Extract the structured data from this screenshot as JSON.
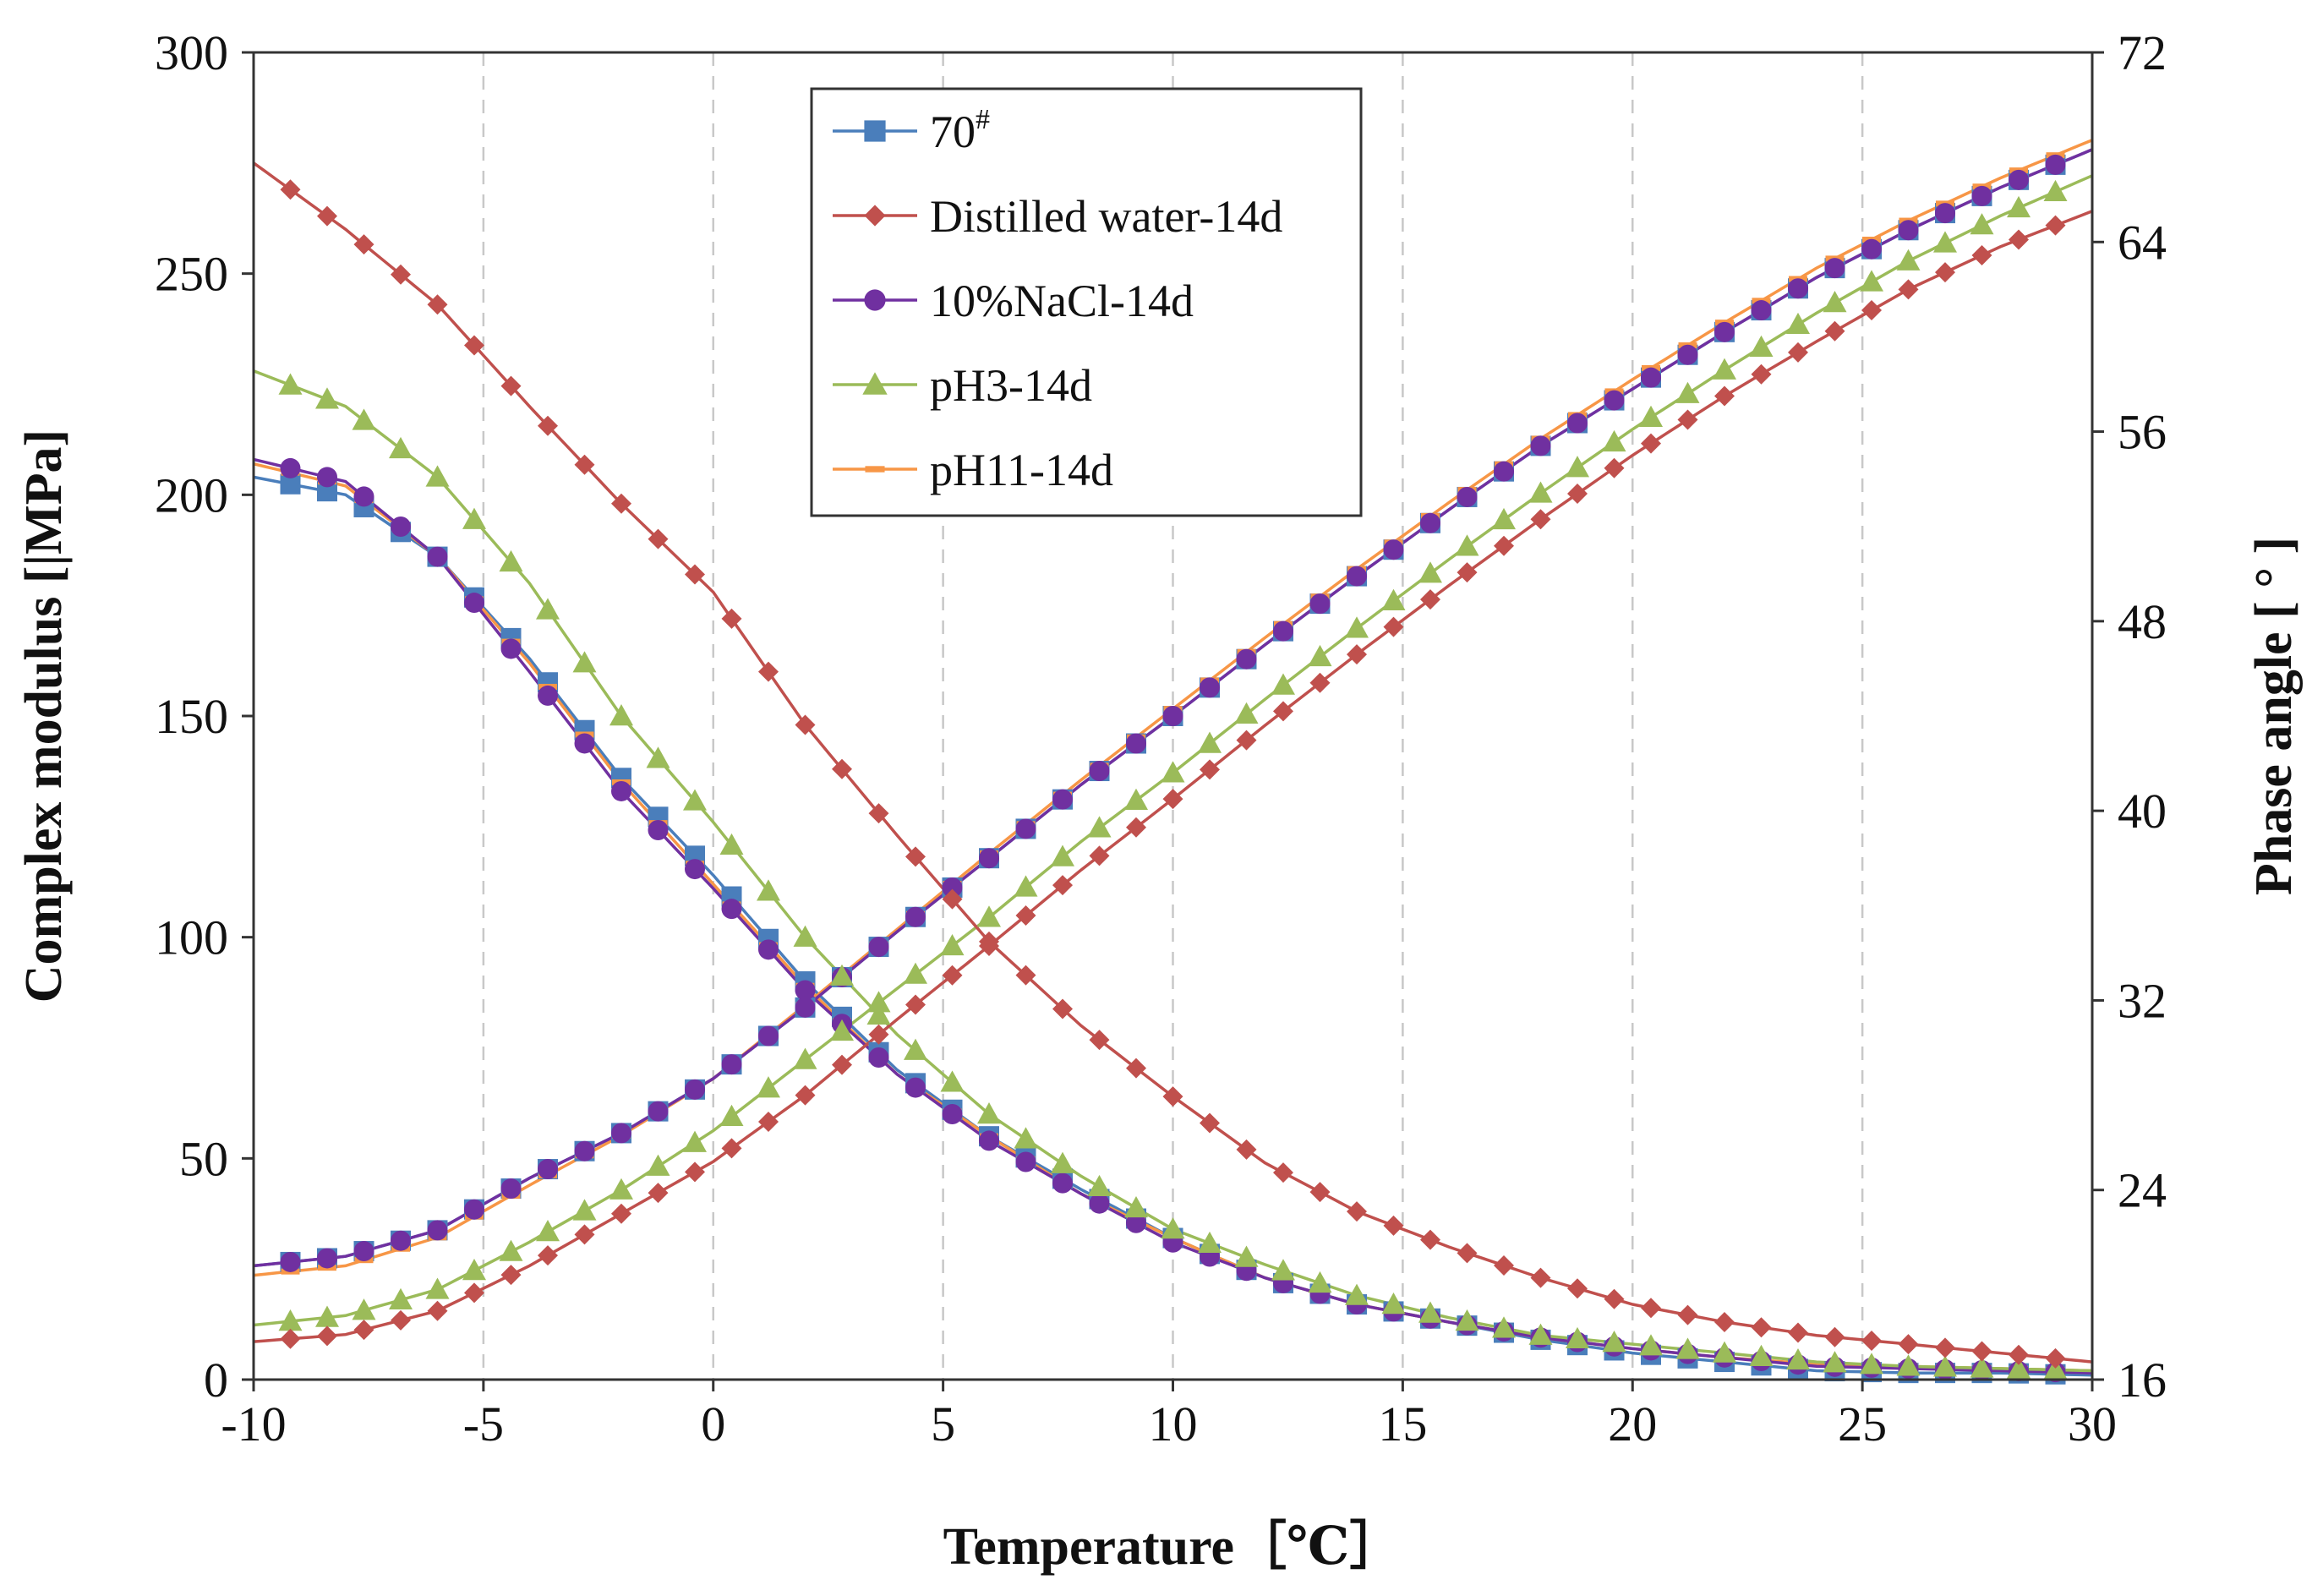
{
  "chart_data": {
    "type": "line",
    "title": "",
    "xlabel": "Temperature［℃］",
    "ylabel_left": "Complex modulus [|MPa]",
    "ylabel_right": "Phase angle [ ° ]",
    "xlim": [
      -10,
      30
    ],
    "ylim_left": [
      0,
      300
    ],
    "ylim_right": [
      16,
      72
    ],
    "x_ticks": [
      "-10",
      "-5",
      "0",
      "5",
      "10",
      "15",
      "20",
      "25",
      "30"
    ],
    "y_left_ticks": [
      "0",
      "50",
      "100",
      "150",
      "200",
      "250",
      "300"
    ],
    "y_right_ticks": [
      "16",
      "24",
      "32",
      "40",
      "48",
      "56",
      "64",
      "72"
    ],
    "grid": "vertical dashed",
    "legend_position": "top-center",
    "x_sample": {
      "start": -9.2,
      "step": 0.8,
      "count": 49
    },
    "series": [
      {
        "name": "70",
        "name_sup": "#",
        "color": "#4a7ebb",
        "marker": "square",
        "modulus": [
          [
            -10,
            204
          ],
          [
            -8,
            200
          ],
          [
            -6,
            186
          ],
          [
            -4,
            163
          ],
          [
            -2,
            136
          ],
          [
            0,
            114
          ],
          [
            2,
            90
          ],
          [
            4,
            70
          ],
          [
            6,
            55
          ],
          [
            8,
            43
          ],
          [
            10,
            32
          ],
          [
            12,
            23
          ],
          [
            14,
            17
          ],
          [
            16,
            13
          ],
          [
            18,
            9
          ],
          [
            20,
            6
          ],
          [
            22,
            4
          ],
          [
            24,
            2
          ],
          [
            26,
            1.5
          ],
          [
            28,
            1.5
          ],
          [
            30,
            1
          ]
        ],
        "phase": [
          [
            -10,
            20.8
          ],
          [
            -8,
            21.2
          ],
          [
            -6,
            22.3
          ],
          [
            -4,
            24.5
          ],
          [
            -2,
            26.4
          ],
          [
            0,
            28.7
          ],
          [
            2,
            31.7
          ],
          [
            4,
            34.9
          ],
          [
            6,
            38.0
          ],
          [
            8,
            41.1
          ],
          [
            10,
            44.0
          ],
          [
            12,
            47.0
          ],
          [
            14,
            49.9
          ],
          [
            16,
            52.7
          ],
          [
            18,
            55.4
          ],
          [
            20,
            57.8
          ],
          [
            22,
            60.2
          ],
          [
            24,
            62.5
          ],
          [
            26,
            64.5
          ],
          [
            28,
            66.3
          ],
          [
            30,
            67.9
          ]
        ]
      },
      {
        "name": "Distilled water-14d",
        "color": "#c0504d",
        "marker": "diamond",
        "modulus": [
          [
            -10,
            275
          ],
          [
            -8,
            260
          ],
          [
            -6,
            243
          ],
          [
            -4,
            220
          ],
          [
            -2,
            198
          ],
          [
            0,
            178
          ],
          [
            2,
            148
          ],
          [
            4,
            123
          ],
          [
            6,
            99
          ],
          [
            8,
            80
          ],
          [
            10,
            64
          ],
          [
            12,
            49
          ],
          [
            14,
            38
          ],
          [
            16,
            30
          ],
          [
            18,
            23
          ],
          [
            20,
            17
          ],
          [
            22,
            13
          ],
          [
            24,
            10
          ],
          [
            26,
            8
          ],
          [
            28,
            6
          ],
          [
            30,
            4
          ]
        ],
        "phase": [
          [
            -10,
            17.6
          ],
          [
            -8,
            17.9
          ],
          [
            -6,
            18.9
          ],
          [
            -4,
            20.8
          ],
          [
            -2,
            23.0
          ],
          [
            0,
            25.2
          ],
          [
            2,
            28.0
          ],
          [
            4,
            31.2
          ],
          [
            6,
            34.3
          ],
          [
            8,
            37.5
          ],
          [
            10,
            40.5
          ],
          [
            12,
            43.6
          ],
          [
            14,
            46.6
          ],
          [
            16,
            49.5
          ],
          [
            18,
            52.3
          ],
          [
            20,
            55.0
          ],
          [
            22,
            57.5
          ],
          [
            24,
            59.8
          ],
          [
            26,
            62.0
          ],
          [
            28,
            63.8
          ],
          [
            30,
            65.3
          ]
        ]
      },
      {
        "name": "10%NaCl-14d",
        "color": "#7030a0",
        "marker": "circle",
        "modulus": [
          [
            -10,
            208
          ],
          [
            -8,
            203
          ],
          [
            -6,
            186
          ],
          [
            -4,
            160
          ],
          [
            -2,
            133
          ],
          [
            0,
            111
          ],
          [
            2,
            88
          ],
          [
            4,
            69
          ],
          [
            6,
            54
          ],
          [
            8,
            42
          ],
          [
            10,
            31
          ],
          [
            12,
            23
          ],
          [
            14,
            17
          ],
          [
            16,
            13
          ],
          [
            18,
            9.5
          ],
          [
            20,
            7
          ],
          [
            22,
            5
          ],
          [
            24,
            3
          ],
          [
            26,
            2.5
          ],
          [
            28,
            2
          ],
          [
            30,
            1.5
          ]
        ],
        "phase": [
          [
            -10,
            20.8
          ],
          [
            -8,
            21.2
          ],
          [
            -6,
            22.3
          ],
          [
            -4,
            24.5
          ],
          [
            -2,
            26.4
          ],
          [
            0,
            28.7
          ],
          [
            2,
            31.7
          ],
          [
            4,
            34.9
          ],
          [
            6,
            38.0
          ],
          [
            8,
            41.1
          ],
          [
            10,
            44.0
          ],
          [
            12,
            47.0
          ],
          [
            14,
            49.9
          ],
          [
            16,
            52.7
          ],
          [
            18,
            55.4
          ],
          [
            20,
            57.8
          ],
          [
            22,
            60.2
          ],
          [
            24,
            62.5
          ],
          [
            26,
            64.5
          ],
          [
            28,
            66.3
          ],
          [
            30,
            67.9
          ]
        ]
      },
      {
        "name": "pH3-14d",
        "color": "#9bbb59",
        "marker": "triangle",
        "modulus": [
          [
            -10,
            228
          ],
          [
            -8,
            220
          ],
          [
            -6,
            204
          ],
          [
            -4,
            180
          ],
          [
            -2,
            150
          ],
          [
            0,
            126
          ],
          [
            2,
            100
          ],
          [
            4,
            78
          ],
          [
            6,
            60
          ],
          [
            8,
            46
          ],
          [
            10,
            34
          ],
          [
            12,
            26
          ],
          [
            14,
            19
          ],
          [
            16,
            14
          ],
          [
            18,
            10
          ],
          [
            20,
            8
          ],
          [
            22,
            6
          ],
          [
            24,
            4
          ],
          [
            26,
            3
          ],
          [
            28,
            2.5
          ],
          [
            30,
            2
          ]
        ],
        "phase": [
          [
            -10,
            18.3
          ],
          [
            -8,
            18.7
          ],
          [
            -6,
            19.8
          ],
          [
            -4,
            21.8
          ],
          [
            -2,
            24.0
          ],
          [
            0,
            26.5
          ],
          [
            2,
            29.5
          ],
          [
            4,
            32.5
          ],
          [
            6,
            35.5
          ],
          [
            8,
            38.7
          ],
          [
            10,
            41.6
          ],
          [
            12,
            44.7
          ],
          [
            14,
            47.7
          ],
          [
            16,
            50.6
          ],
          [
            18,
            53.4
          ],
          [
            20,
            56.1
          ],
          [
            22,
            58.6
          ],
          [
            24,
            61.0
          ],
          [
            26,
            63.2
          ],
          [
            28,
            65.1
          ],
          [
            30,
            66.8
          ]
        ]
      },
      {
        "name": "pH11-14d",
        "color": "#f79646",
        "marker": "dash",
        "modulus": [
          [
            -10,
            207
          ],
          [
            -8,
            202
          ],
          [
            -6,
            186
          ],
          [
            -4,
            162
          ],
          [
            -2,
            135
          ],
          [
            0,
            112
          ],
          [
            2,
            89
          ],
          [
            4,
            69
          ],
          [
            6,
            55
          ],
          [
            8,
            42
          ],
          [
            10,
            32
          ],
          [
            12,
            23
          ],
          [
            14,
            17
          ],
          [
            16,
            13
          ],
          [
            18,
            9.5
          ],
          [
            20,
            7
          ],
          [
            22,
            5
          ],
          [
            24,
            3.5
          ],
          [
            26,
            3
          ],
          [
            28,
            2.5
          ],
          [
            30,
            2
          ]
        ],
        "phase": [
          [
            -10,
            20.4
          ],
          [
            -8,
            20.8
          ],
          [
            -6,
            22.0
          ],
          [
            -4,
            24.2
          ],
          [
            -2,
            26.3
          ],
          [
            0,
            28.7
          ],
          [
            2,
            31.8
          ],
          [
            4,
            35.0
          ],
          [
            6,
            38.2
          ],
          [
            8,
            41.3
          ],
          [
            10,
            44.3
          ],
          [
            12,
            47.3
          ],
          [
            14,
            50.2
          ],
          [
            16,
            53.0
          ],
          [
            18,
            55.7
          ],
          [
            20,
            58.2
          ],
          [
            22,
            60.6
          ],
          [
            24,
            62.9
          ],
          [
            26,
            64.9
          ],
          [
            28,
            66.7
          ],
          [
            30,
            68.3
          ]
        ]
      }
    ]
  }
}
